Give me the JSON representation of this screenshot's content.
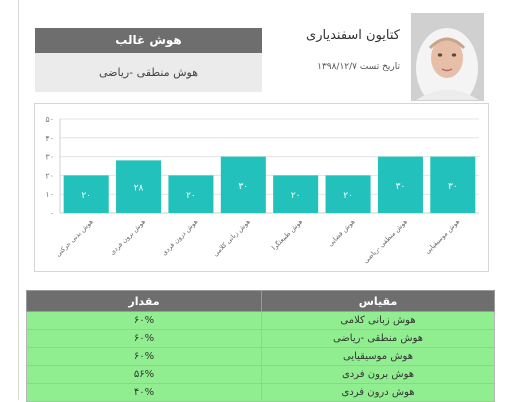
{
  "profile": {
    "name": "کتایون اسفندیاری",
    "test_date": "تاریخ تست ۱۳۹۸/۱۲/۷"
  },
  "dominant": {
    "heading": "هوش غالب",
    "value": "هوش منطقی -ریاضی"
  },
  "colors": {
    "bar": "#22c1bb",
    "table_header": "#6e6e6e",
    "table_row": "#90ee90"
  },
  "chart_data": {
    "type": "bar",
    "categories": [
      "هوش بدنی حرکتی",
      "هوش برون فردی",
      "هوش درون فردی",
      "هوش زبانی کلامی",
      "هوش طبیعتگرا",
      "هوش فضایی",
      "هوش منطقی -ریاضی",
      "هوش موسیقیایی"
    ],
    "values": [
      20,
      28,
      20,
      30,
      20,
      20,
      30,
      30
    ],
    "value_labels": [
      "۲۰",
      "۲۸",
      "۲۰",
      "۳۰",
      "۲۰",
      "۲۰",
      "۳۰",
      "۳۰"
    ],
    "ylim": [
      0,
      50
    ],
    "yticks": [
      0,
      10,
      20,
      30,
      40,
      50
    ],
    "ytick_labels": [
      "۰",
      "۱۰",
      "۲۰",
      "۳۰",
      "۴۰",
      "۵۰"
    ],
    "grid": true,
    "title": "",
    "xlabel": "",
    "ylabel": ""
  },
  "table": {
    "headers": [
      "مقیاس",
      "مقدار"
    ],
    "rows": [
      [
        "هوش زبانی کلامی",
        "۶۰%"
      ],
      [
        "هوش منطقی -ریاضی",
        "۶۰%"
      ],
      [
        "هوش موسیقیایی",
        "۶۰%"
      ],
      [
        "هوش برون فردی",
        "۵۶%"
      ],
      [
        "هوش درون فردی",
        "۴۰%"
      ]
    ]
  }
}
